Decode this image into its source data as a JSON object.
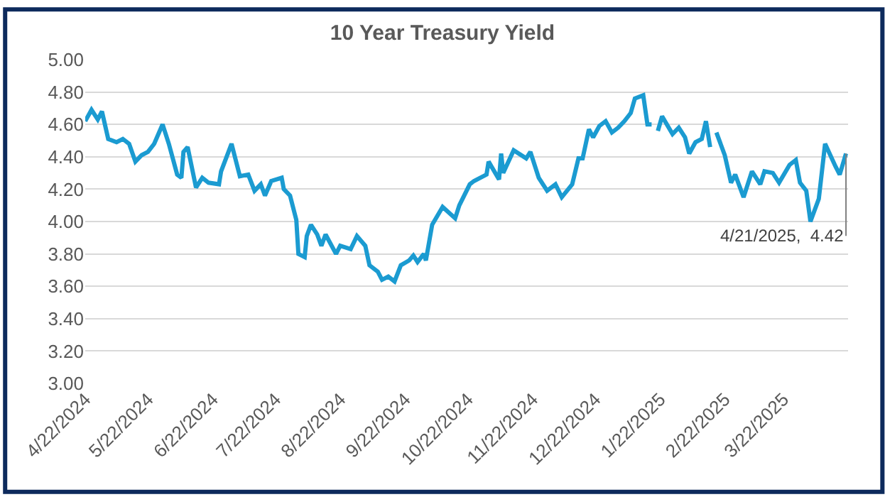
{
  "chart_data": {
    "type": "line",
    "title": "10 Year Treasury Yield",
    "x": [
      "2024-04-22",
      "2024-04-25",
      "2024-04-28",
      "2024-04-30",
      "2024-05-03",
      "2024-05-07",
      "2024-05-10",
      "2024-05-13",
      "2024-05-16",
      "2024-05-19",
      "2024-05-22",
      "2024-05-25",
      "2024-05-29",
      "2024-06-01",
      "2024-06-05",
      "2024-06-07",
      "2024-06-08",
      "2024-06-10",
      "2024-06-14",
      "2024-06-17",
      "2024-06-20",
      "2024-06-25",
      "2024-06-26",
      "2024-07-01",
      "2024-07-05",
      "2024-07-09",
      "2024-07-12",
      "2024-07-15",
      "2024-07-17",
      "2024-07-20",
      "2024-07-25",
      "2024-07-26",
      "2024-07-29",
      "2024-08-01",
      "2024-08-02",
      "2024-08-05",
      "2024-08-06",
      "2024-08-08",
      "2024-08-11",
      "2024-08-13",
      "2024-08-15",
      "2024-08-20",
      "2024-08-22",
      "2024-08-27",
      "2024-08-30",
      "2024-09-03",
      "2024-09-05",
      "2024-09-09",
      "2024-09-11",
      "2024-09-14",
      "2024-09-17",
      "2024-09-20",
      "2024-09-24",
      "2024-09-26",
      "2024-09-28",
      "2024-10-01",
      "2024-10-02",
      "2024-10-05",
      "2024-10-10",
      "2024-10-16",
      "2024-10-18",
      "2024-10-23",
      "2024-10-25",
      "2024-10-31",
      "2024-11-01",
      "2024-11-06",
      "2024-11-07",
      "2024-11-08",
      "2024-11-13",
      "2024-11-19",
      "2024-11-21",
      "2024-11-25",
      "2024-11-29",
      "2024-12-03",
      "2024-12-06",
      "2024-12-11",
      "2024-12-14",
      "2024-12-16",
      "2024-12-19",
      "2024-12-21",
      "2024-12-24",
      "2024-12-27",
      "2024-12-30",
      "2025-01-02",
      "2025-01-05",
      "2025-01-08",
      "2025-01-10",
      "2025-01-14",
      "2025-01-16",
      "2025-01-18",
      "2025-01-19",
      "2025-01-21",
      "2025-01-23",
      "2025-01-28",
      "2025-01-31",
      "2025-02-03",
      "2025-02-05",
      "2025-02-08",
      "2025-02-11",
      "2025-02-13",
      "2025-02-15",
      "2025-02-16",
      "2025-02-18",
      "2025-02-22",
      "2025-02-25",
      "2025-02-27",
      "2025-03-03",
      "2025-03-07",
      "2025-03-11",
      "2025-03-13",
      "2025-03-17",
      "2025-03-20",
      "2025-03-25",
      "2025-03-28",
      "2025-03-30",
      "2025-04-02",
      "2025-04-04",
      "2025-04-08",
      "2025-04-11",
      "2025-04-16",
      "2025-04-18",
      "2025-04-21"
    ],
    "series": [
      {
        "color": "#1b9bd1",
        "values": [
          4.62,
          4.69,
          4.63,
          4.68,
          4.51,
          4.49,
          4.51,
          4.48,
          4.37,
          4.41,
          4.43,
          4.48,
          4.6,
          4.48,
          4.29,
          4.27,
          4.43,
          4.46,
          4.21,
          4.27,
          4.24,
          4.23,
          4.31,
          4.48,
          4.28,
          4.29,
          4.19,
          4.23,
          4.16,
          4.25,
          4.27,
          4.2,
          4.16,
          4.01,
          3.8,
          3.78,
          3.91,
          3.98,
          3.92,
          3.85,
          3.92,
          3.8,
          3.85,
          3.83,
          3.91,
          3.85,
          3.73,
          3.69,
          3.64,
          3.66,
          3.63,
          3.73,
          3.76,
          3.79,
          3.75,
          3.8,
          3.76,
          3.98,
          4.09,
          4.02,
          4.1,
          4.23,
          4.25,
          4.29,
          4.37,
          4.26,
          4.42,
          4.3,
          4.44,
          4.39,
          4.43,
          4.27,
          4.19,
          4.23,
          4.15,
          4.23,
          4.39,
          4.39,
          4.57,
          4.52,
          4.59,
          4.62,
          4.55,
          4.58,
          4.62,
          4.67,
          4.76,
          4.78,
          4.6,
          4.6,
          null,
          4.56,
          4.65,
          4.54,
          4.58,
          4.52,
          4.42,
          4.49,
          4.51,
          4.62,
          4.46,
          null,
          4.55,
          4.41,
          4.24,
          4.29,
          4.15,
          4.31,
          4.23,
          4.31,
          4.3,
          4.24,
          4.35,
          4.38,
          4.24,
          4.19,
          4.0,
          4.14,
          4.48,
          4.34,
          4.29,
          4.42
        ]
      }
    ],
    "xlim": [
      "2024-04-22",
      "2025-04-22"
    ],
    "xticks": [
      {
        "value": "2024-04-22",
        "label": "4/22/2024"
      },
      {
        "value": "2024-05-22",
        "label": "5/22/2024"
      },
      {
        "value": "2024-06-22",
        "label": "6/22/2024"
      },
      {
        "value": "2024-07-22",
        "label": "7/22/2024"
      },
      {
        "value": "2024-08-22",
        "label": "8/22/2024"
      },
      {
        "value": "2024-09-22",
        "label": "9/22/2024"
      },
      {
        "value": "2024-10-22",
        "label": "10/22/2024"
      },
      {
        "value": "2024-11-22",
        "label": "11/22/2024"
      },
      {
        "value": "2024-12-22",
        "label": "12/22/2024"
      },
      {
        "value": "2025-01-22",
        "label": "1/22/2025"
      },
      {
        "value": "2025-02-22",
        "label": "2/22/2025"
      },
      {
        "value": "2025-03-22",
        "label": "3/22/2025"
      }
    ],
    "ylim": [
      3.0,
      5.0
    ],
    "yticks": [
      {
        "value": 3.0,
        "label": "3.00"
      },
      {
        "value": 3.2,
        "label": "3.20"
      },
      {
        "value": 3.4,
        "label": "3.40"
      },
      {
        "value": 3.6,
        "label": "3.60"
      },
      {
        "value": 3.8,
        "label": "3.80"
      },
      {
        "value": 4.0,
        "label": "4.00"
      },
      {
        "value": 4.2,
        "label": "4.20"
      },
      {
        "value": 4.4,
        "label": "4.40"
      },
      {
        "value": 4.6,
        "label": "4.60"
      },
      {
        "value": 4.8,
        "label": "4.80"
      },
      {
        "value": 5.0,
        "label": "5.00"
      }
    ],
    "annotations": [
      {
        "text": "4/21/2025,  4.42",
        "x": "2025-04-21",
        "y": 4.42
      }
    ],
    "grid": "y",
    "marker": "none",
    "line_style": "solid"
  }
}
